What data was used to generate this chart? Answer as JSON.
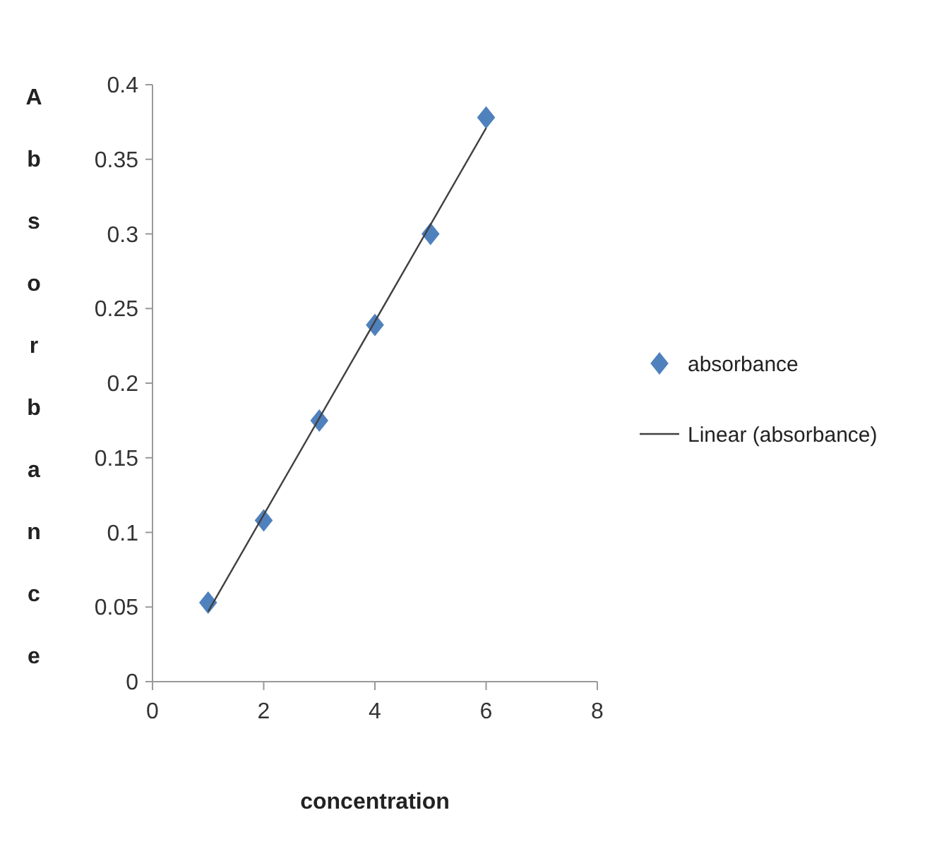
{
  "chart_data": {
    "type": "scatter",
    "xlabel": "concentration",
    "ylabel": "Absorbance",
    "x": [
      1,
      2,
      3,
      4,
      5,
      6
    ],
    "series": [
      {
        "name": "absorbance",
        "color": "#4f81bd",
        "marker": "diamond",
        "values": [
          0.053,
          0.108,
          0.175,
          0.239,
          0.3,
          0.378
        ]
      },
      {
        "name": "Linear (absorbance)",
        "type": "line",
        "color": "#404040",
        "marker": "none",
        "line_style": "solid",
        "x": [
          1,
          6
        ],
        "values": [
          0.047,
          0.371
        ]
      }
    ],
    "xlim": [
      0,
      8
    ],
    "xticks": [
      0,
      2,
      4,
      6,
      8
    ],
    "ylim": [
      0,
      0.4
    ],
    "yticks": [
      0,
      0.05,
      0.1,
      0.15,
      0.2,
      0.25,
      0.3,
      0.35,
      0.4
    ],
    "grid": false,
    "legend": "right"
  }
}
